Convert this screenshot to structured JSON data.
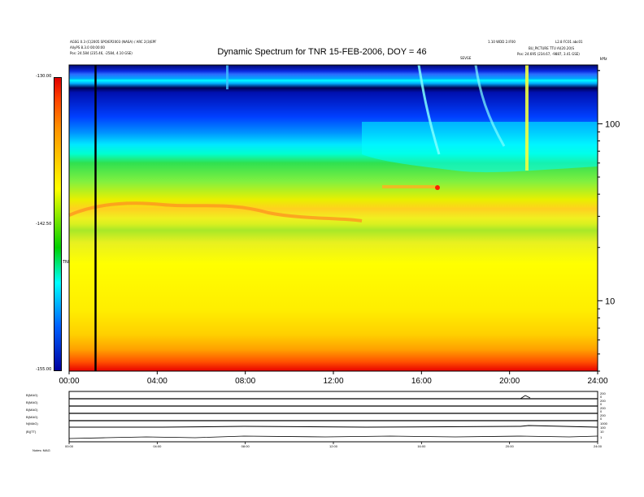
{
  "chart_data": {
    "type": "heatmap",
    "title": "Dynamic Spectrum for TNR 15-FEB-2006, DOY = 46",
    "x_tick_labels": [
      "00:00",
      "04:00",
      "08:00",
      "12:00",
      "16:00",
      "20:00",
      "24:00"
    ],
    "xlim_hours": [
      0,
      24
    ],
    "y_scale": "log",
    "ylim": [
      4,
      215
    ],
    "y_tick_labels": [
      "100",
      "10"
    ],
    "y_unit_label": "kHz",
    "colorbar": {
      "label": "TNR",
      "tick_labels": [
        "-130.00",
        "-142.50",
        "-155.00"
      ],
      "range": [
        -155.0,
        -130.0
      ],
      "colors": [
        "#0000a0",
        "#0060ff",
        "#00ffff",
        "#00d000",
        "#ffff00",
        "#ff9000",
        "#e00000"
      ]
    },
    "marker_line_hour": 1.2,
    "header_left": [
      "AGSG 0.3 (C)2005 SPO/EP2003 (NASA) / ARC 2(3)EPF",
      "AllyPS 8.3.0 00:00:00",
      "Pos: 24.584 (235.46, -2584, 4.10 GSE)"
    ],
    "header_right": [
      "1.10 WDD 2.IF00",
      "L2.8 FC01 abc01",
      "BU_PICTURE TTU Al(20.20)S",
      "Pos: 24.695 (234.67, -9887, 3.41 GSE)"
    ],
    "top_center_small_label": "SEVGE",
    "panel_labels": [
      "B(MAG)",
      "B(MAG)",
      "B(MAG)",
      "B(MAG)",
      "N(MAG)",
      "|B|(TT)"
    ],
    "panel_right_ticks": [
      "200",
      "0",
      "200",
      "0",
      "200",
      "0",
      "200",
      "0",
      "1000",
      "100",
      "10",
      "1"
    ],
    "bottom_tick_labels": [
      "00:00",
      "04:00",
      "08:00",
      "12:00",
      "16:00",
      "20:00",
      "24:00"
    ],
    "footer_label": "Notes: MAG"
  },
  "colors": {
    "background": "#ffffff",
    "frame": "#000000"
  }
}
